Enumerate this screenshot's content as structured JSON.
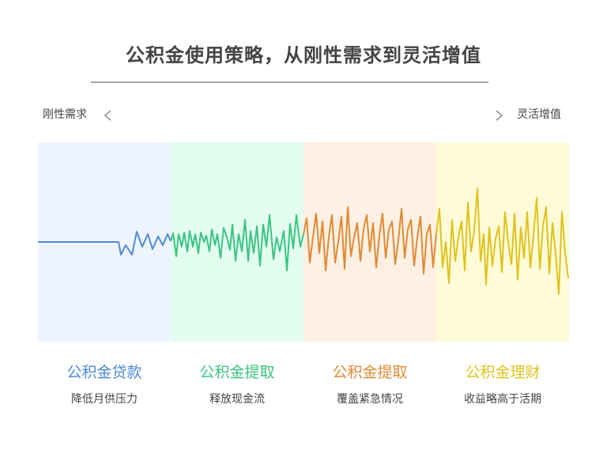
{
  "title": "公积金使用策略，从刚性需求到灵活增值",
  "axis": {
    "left_label": "刚性需求",
    "right_label": "灵活增值"
  },
  "segments": [
    {
      "title": "公积金贷款",
      "desc": "降低月供压力",
      "color": "#4f8ad9",
      "bg": "#eef4ff"
    },
    {
      "title": "公积金提取",
      "desc": "释放现金流",
      "color": "#3cc483",
      "bg": "#e3fdef"
    },
    {
      "title": "公积金提取",
      "desc": "覆盖紧急情况",
      "color": "#e08a34",
      "bg": "#fff0e3"
    },
    {
      "title": "公积金理财",
      "desc": "收益略高于活期",
      "color": "#e0c21e",
      "bg": "#fffbd8"
    }
  ]
}
